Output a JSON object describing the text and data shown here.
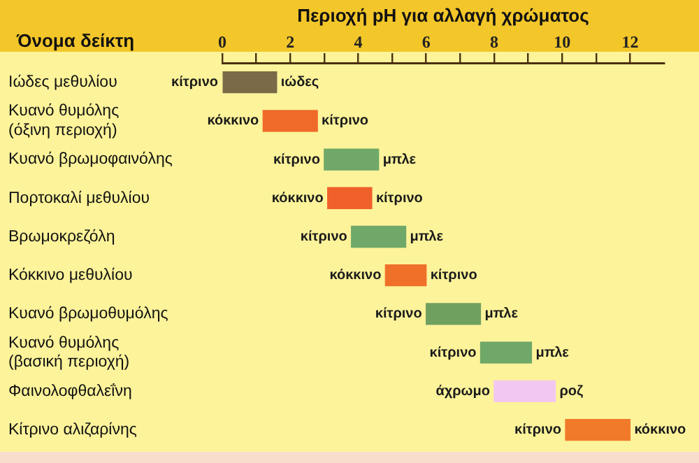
{
  "chart_data": {
    "type": "bar",
    "orientation": "horizontal",
    "xlabel": "Περιοχή pH για αλλαγή χρώματος",
    "ylabel": "Όνομα δείκτη",
    "categories": [
      "Ιώδες μεθυλίου",
      "Κυανό θυμόλης (όξινη περιοχή)",
      "Κυανό βρωμοφαινόλης",
      "Πορτοκαλί μεθυλίου",
      "Βρωμοκρεζόλη",
      "Κόκκινο μεθυλίου",
      "Κυανό βρωμοθυμόλης",
      "Κυανό θυμόλης (βασική περιοχή)",
      "Φαινολοφθαλεΐνη",
      "Κίτρινο αλιζαρίνης"
    ],
    "base": [
      0,
      1.2,
      3.0,
      3.1,
      3.8,
      4.8,
      6.0,
      7.6,
      8.0,
      10.1
    ],
    "values": [
      1.6,
      1.6,
      1.6,
      1.3,
      1.6,
      1.2,
      1.6,
      1.5,
      1.8,
      1.9
    ],
    "colors": [
      "#7a6a48",
      "#f06a2a",
      "#6fa868",
      "#f0602a",
      "#6fa868",
      "#f0702a",
      "#6fa060",
      "#6fa868",
      "#f2c8f0",
      "#f07a2a"
    ],
    "xlim": [
      0,
      13
    ],
    "xticks": [
      0,
      {
        "value": 1,
        "label": null
      },
      2,
      {
        "value": 3,
        "label": null
      },
      4,
      {
        "value": 5,
        "label": null
      },
      6,
      {
        "value": 7,
        "label": null
      },
      8,
      {
        "value": 9,
        "label": null
      },
      10,
      {
        "value": 11,
        "label": null
      },
      12
    ],
    "annotations": [
      {
        "text": "κίτρινο",
        "x": 0,
        "y": "Ιώδες μεθυλίου"
      },
      {
        "text": "ιώδες",
        "x": 1.6,
        "y": "Ιώδες μεθυλίου"
      },
      {
        "text": "κόκκινο",
        "x": 1.2,
        "y": "Κυανό θυμόλης (όξινη περιοχή)"
      },
      {
        "text": "κίτρινο",
        "x": 2.8,
        "y": "Κυανό θυμόλης (όξινη περιοχή)"
      },
      {
        "text": "κίτρινο",
        "x": 3.0,
        "y": "Κυανό βρωμοφαινόλης"
      },
      {
        "text": "μπλε",
        "x": 4.6,
        "y": "Κυανό βρωμοφαινόλης"
      },
      {
        "text": "κόκκινο",
        "x": 3.1,
        "y": "Πορτοκαλί μεθυλίου"
      },
      {
        "text": "κίτρινο",
        "x": 4.4,
        "y": "Πορτοκαλί μεθυλίου"
      },
      {
        "text": "κίτρινο",
        "x": 3.8,
        "y": "Βρωμοκρεζόλη"
      },
      {
        "text": "μπλε",
        "x": 5.4,
        "y": "Βρωμοκρεζόλη"
      },
      {
        "text": "κόκκινο",
        "x": 4.8,
        "y": "Κόκκινο μεθυλίου"
      },
      {
        "text": "κίτρινο",
        "x": 6.0,
        "y": "Κόκκινο μεθυλίου"
      },
      {
        "text": "κίτρινο",
        "x": 6.0,
        "y": "Κυανό βρωμοθυμόλης"
      },
      {
        "text": "μπλε",
        "x": 7.6,
        "y": "Κυανό βρωμοθυμόλης"
      },
      {
        "text": "κίτρινο",
        "x": 7.6,
        "y": "Κυανό θυμόλης (βασική περιοχή)"
      },
      {
        "text": "μπλε",
        "x": 9.1,
        "y": "Κυανό θυμόλης (βασική περιοχή)"
      },
      {
        "text": "άχρωμο",
        "x": 8.0,
        "y": "Φαινολοφθαλεΐνη"
      },
      {
        "text": "ροζ",
        "x": 9.8,
        "y": "Φαινολοφθαλεΐνη"
      },
      {
        "text": "κίτρινο",
        "x": 10.1,
        "y": "Κίτρινο αλιζαρίνης"
      },
      {
        "text": "κόκκινο",
        "x": 12.0,
        "y": "Κίτρινο αλιζαρίνης"
      }
    ]
  }
}
